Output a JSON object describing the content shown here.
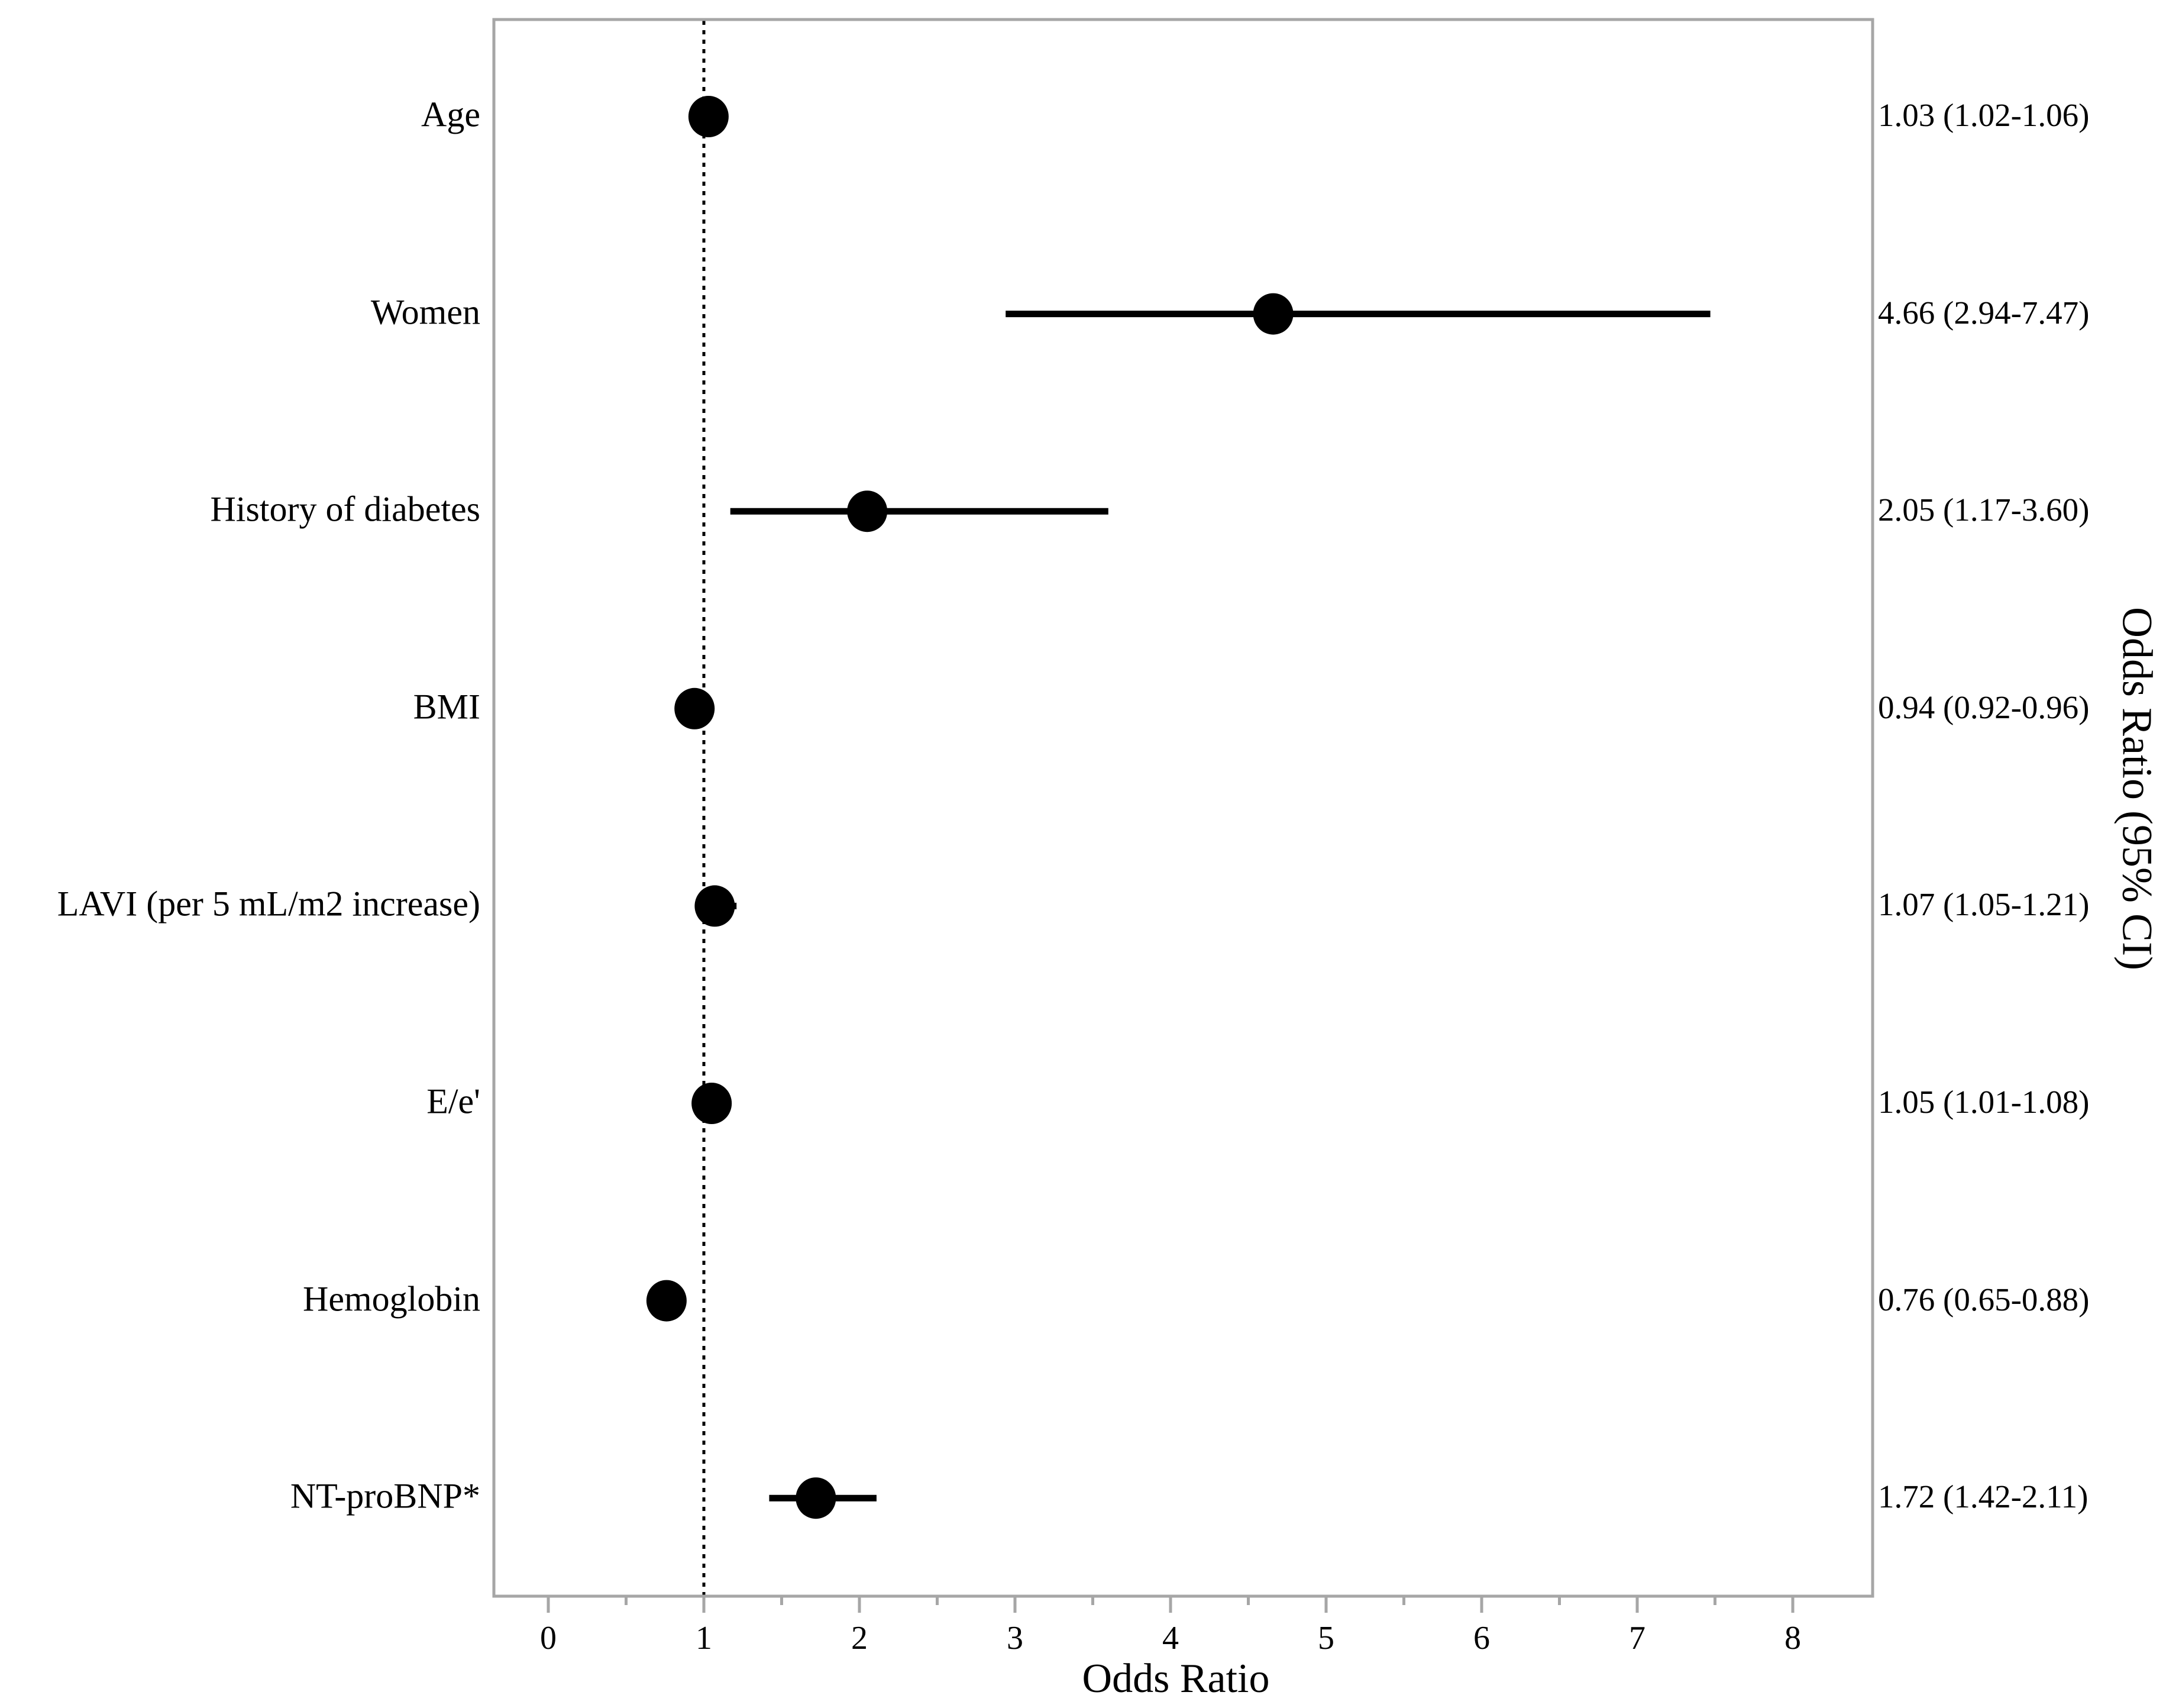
{
  "chart_data": {
    "type": "scatter",
    "subtype": "forest-plot",
    "title": "",
    "xlabel": "Odds Ratio",
    "right_axis_label": "Odds Ratio (95% CI)",
    "x_ticks": [
      0,
      1,
      2,
      3,
      4,
      5,
      6,
      7,
      8
    ],
    "x_minor_tick_step": 0.5,
    "xlim": [
      -0.35,
      8.5
    ],
    "reference_line_x": 1,
    "grid": "off",
    "legend": "none",
    "rows": [
      {
        "label": "Age",
        "or": 1.03,
        "ci_low": 1.02,
        "ci_high": 1.06,
        "ci_text": "1.03 (1.02-1.06)"
      },
      {
        "label": "Women",
        "or": 4.66,
        "ci_low": 2.94,
        "ci_high": 7.47,
        "ci_text": "4.66 (2.94-7.47)"
      },
      {
        "label": "History of diabetes",
        "or": 2.05,
        "ci_low": 1.17,
        "ci_high": 3.6,
        "ci_text": "2.05 (1.17-3.60)"
      },
      {
        "label": "BMI",
        "or": 0.94,
        "ci_low": 0.92,
        "ci_high": 0.96,
        "ci_text": "0.94 (0.92-0.96)"
      },
      {
        "label": "LAVI (per 5 mL/m2 increase)",
        "or": 1.07,
        "ci_low": 1.05,
        "ci_high": 1.21,
        "ci_text": "1.07 (1.05-1.21)"
      },
      {
        "label": "E/e'",
        "or": 1.05,
        "ci_low": 1.01,
        "ci_high": 1.08,
        "ci_text": "1.05 (1.01-1.08)"
      },
      {
        "label": "Hemoglobin",
        "or": 0.76,
        "ci_low": 0.65,
        "ci_high": 0.88,
        "ci_text": "0.76 (0.65-0.88)"
      },
      {
        "label": "NT-proBNP*",
        "or": 1.72,
        "ci_low": 1.42,
        "ci_high": 2.11,
        "ci_text": "1.72 (1.42-2.11)"
      }
    ],
    "colors": {
      "background": "#ffffff",
      "marker": "#000000",
      "ci_line": "#000000",
      "reference_line": "#000000",
      "plot_border": "#a6a6a6",
      "tick": "#a6a6a6",
      "text": "#000000"
    }
  }
}
